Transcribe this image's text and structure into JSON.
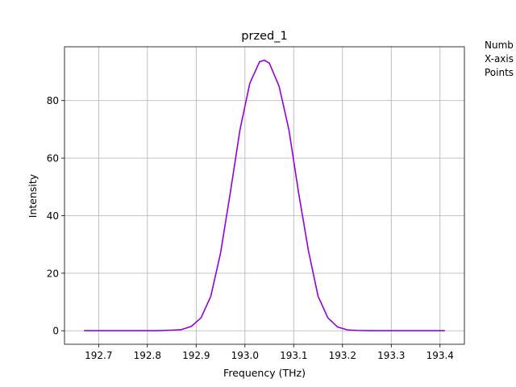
{
  "chart_data": {
    "type": "line",
    "title": "przed_1",
    "xlabel": "Frequency (THz)",
    "ylabel": "Intensity",
    "xlim": [
      192.63,
      193.45
    ],
    "ylim": [
      -4.7,
      98.7
    ],
    "xticks": [
      192.7,
      192.8,
      192.9,
      193.0,
      193.1,
      193.2,
      193.3,
      193.4
    ],
    "xtick_labels": [
      "192.7",
      "192.8",
      "192.9",
      "193.0",
      "193.1",
      "193.2",
      "193.3",
      "193.4"
    ],
    "yticks": [
      0,
      20,
      40,
      60,
      80
    ],
    "ytick_labels": [
      "0",
      "20",
      "40",
      "60",
      "80"
    ],
    "grid": true,
    "series": [
      {
        "color": "#9400d3",
        "x": [
          192.67,
          192.72,
          192.77,
          192.82,
          192.85,
          192.87,
          192.89,
          192.91,
          192.93,
          192.95,
          192.97,
          192.99,
          193.01,
          193.03,
          193.04,
          193.05,
          193.07,
          193.09,
          193.11,
          193.13,
          193.15,
          193.17,
          193.19,
          193.21,
          193.23,
          193.26,
          193.3,
          193.35,
          193.41
        ],
        "y": [
          0,
          0,
          0,
          0,
          0.2,
          0.4,
          1.5,
          4.5,
          12,
          27,
          48,
          70,
          86,
          93.5,
          94,
          93,
          85,
          70,
          48,
          28,
          12,
          4.5,
          1.3,
          0.3,
          0.1,
          0,
          0,
          0,
          0
        ]
      }
    ]
  },
  "side_text": [
    "Numb",
    "X-axis",
    "Points"
  ]
}
